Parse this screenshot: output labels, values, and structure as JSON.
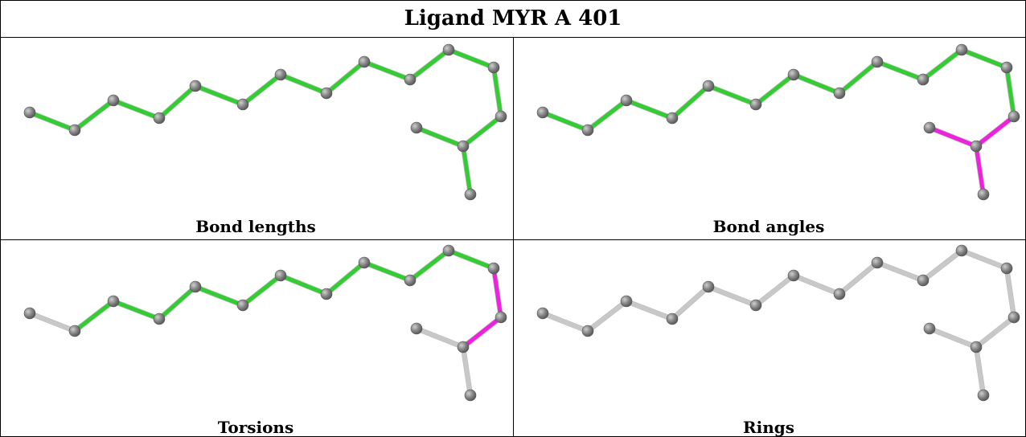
{
  "title": "Ligand MYR A 401",
  "colors": {
    "ok_bond": "#33cc33",
    "outlier_bond": "#ee22dd",
    "neutral_bond": "#c8c8c8",
    "atom": "#7a7a7a"
  },
  "panels": [
    {
      "label": "Bond lengths",
      "bond_colors": [
        "g",
        "g",
        "g",
        "g",
        "g",
        "g",
        "g",
        "g",
        "g",
        "g",
        "g",
        "g",
        "g",
        "g",
        "g"
      ]
    },
    {
      "label": "Bond angles",
      "bond_colors": [
        "g",
        "g",
        "g",
        "g",
        "g",
        "g",
        "g",
        "g",
        "g",
        "g",
        "g",
        "g",
        "m",
        "m",
        "m"
      ]
    },
    {
      "label": "Torsions",
      "bond_colors": [
        "n",
        "g",
        "g",
        "g",
        "g",
        "g",
        "g",
        "g",
        "g",
        "g",
        "g",
        "m",
        "m",
        "n",
        "n"
      ]
    },
    {
      "label": "Rings",
      "bond_colors": [
        "n",
        "n",
        "n",
        "n",
        "n",
        "n",
        "n",
        "n",
        "n",
        "n",
        "n",
        "n",
        "n",
        "n",
        "n"
      ]
    }
  ]
}
